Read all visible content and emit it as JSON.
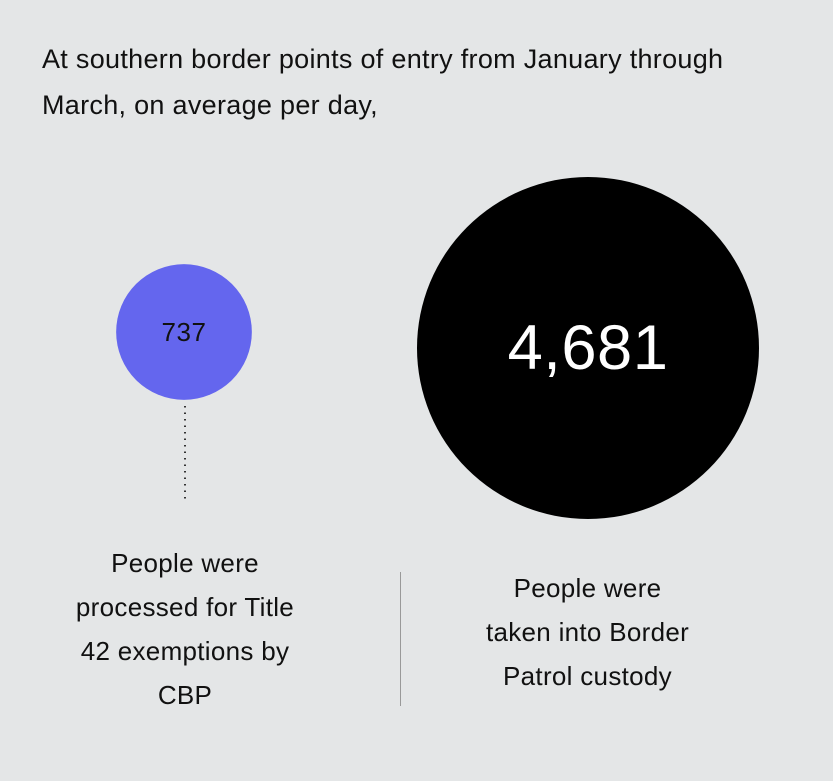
{
  "chart_data": {
    "type": "bubble",
    "title": "At southern border points of entry from January through March, on average per day,",
    "categories": [
      "People were processed for Title 42 exemptions by CBP",
      "People were taken into Border Patrol custody"
    ],
    "values": [
      737,
      4681
    ],
    "value_labels": [
      "737",
      "4,681"
    ],
    "colors": [
      "#6466ee",
      "#000000"
    ],
    "label_colors": [
      "#111111",
      "#ffffff"
    ]
  }
}
